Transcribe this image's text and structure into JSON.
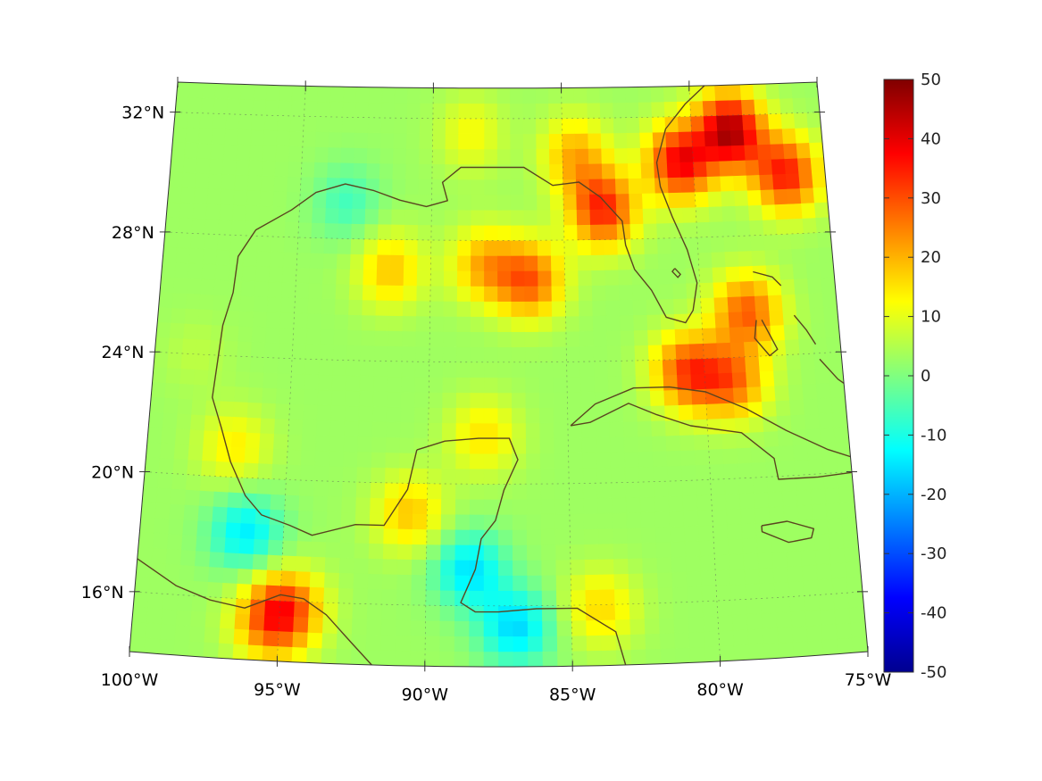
{
  "map": {
    "lon_ticks": [
      {
        "value": -100,
        "label": "100°W"
      },
      {
        "value": -95,
        "label": "95°W"
      },
      {
        "value": -90,
        "label": "90°W"
      },
      {
        "value": -85,
        "label": "85°W"
      },
      {
        "value": -80,
        "label": "80°W"
      },
      {
        "value": -75,
        "label": "75°W"
      }
    ],
    "lat_ticks": [
      {
        "value": 32,
        "label": "32°N"
      },
      {
        "value": 28,
        "label": "28°N"
      },
      {
        "value": 24,
        "label": "24°N"
      },
      {
        "value": 20,
        "label": "20°N"
      },
      {
        "value": 16,
        "label": "16°N"
      }
    ],
    "extent": {
      "lon": [
        -100,
        -75
      ],
      "lat": [
        14,
        33
      ]
    },
    "grid": true,
    "coastline_color": "#5a4420"
  },
  "colorbar": {
    "colormap": "jet",
    "min": -50,
    "max": 50,
    "tick_labels": [
      "50",
      "40",
      "30",
      "20",
      "10",
      "0",
      "-10",
      "-20",
      "-30",
      "-40",
      "-50"
    ]
  },
  "chart_data": {
    "type": "heatmap",
    "title": "",
    "value_range": [
      -50,
      50
    ],
    "field_background_value": 3,
    "hotspots": [
      {
        "lon": -78.5,
        "lat": 31.5,
        "value": 45
      },
      {
        "lon": -80.5,
        "lat": 30.5,
        "value": 38
      },
      {
        "lon": -76.5,
        "lat": 30.0,
        "value": 35
      },
      {
        "lon": -83.5,
        "lat": 29.0,
        "value": 34
      },
      {
        "lon": -84.5,
        "lat": 30.8,
        "value": 20
      },
      {
        "lon": -86.3,
        "lat": 26.7,
        "value": 28
      },
      {
        "lon": -88.0,
        "lat": 27.2,
        "value": 20
      },
      {
        "lon": -91.5,
        "lat": 27.0,
        "value": 18
      },
      {
        "lon": -94.8,
        "lat": 15.8,
        "value": 26
      },
      {
        "lon": -95.3,
        "lat": 15.2,
        "value": 20
      },
      {
        "lon": -80.6,
        "lat": 23.6,
        "value": 30
      },
      {
        "lon": -79.0,
        "lat": 23.2,
        "value": 25
      },
      {
        "lon": -78.3,
        "lat": 25.5,
        "value": 28
      },
      {
        "lon": -90.6,
        "lat": 19.0,
        "value": 18
      },
      {
        "lon": -96.9,
        "lat": 21.0,
        "value": 14
      },
      {
        "lon": -88.0,
        "lat": 21.6,
        "value": 15
      },
      {
        "lon": -84.0,
        "lat": 15.9,
        "value": 16
      },
      {
        "lon": -88.5,
        "lat": 17.2,
        "value": -15
      },
      {
        "lon": -96.3,
        "lat": 18.2,
        "value": -14
      },
      {
        "lon": -86.9,
        "lat": 15.3,
        "value": -16
      },
      {
        "lon": -93.2,
        "lat": 29.2,
        "value": -6
      },
      {
        "lon": -98.5,
        "lat": 30.0,
        "value": 3
      },
      {
        "lon": -98.5,
        "lat": 24.0,
        "value": 6
      },
      {
        "lon": -88.5,
        "lat": 31.5,
        "value": 12
      }
    ]
  }
}
